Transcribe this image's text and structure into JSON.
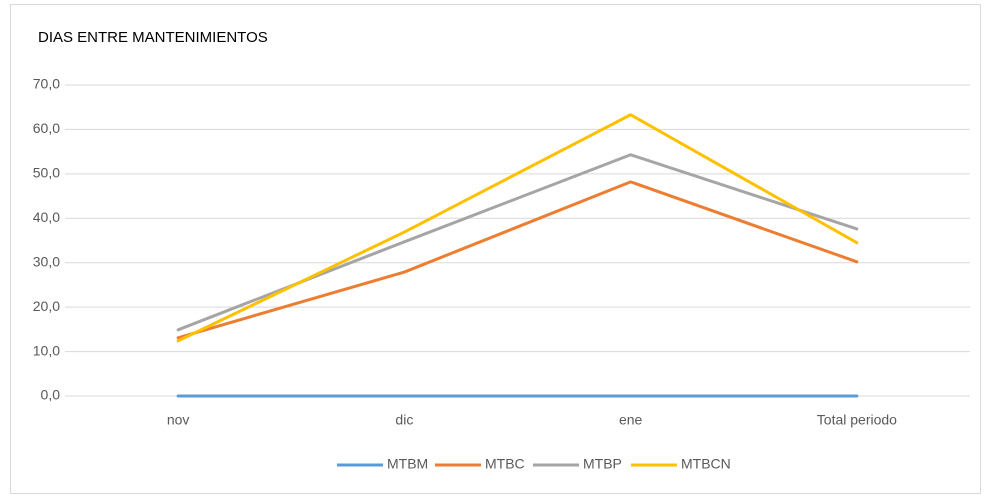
{
  "chart_data": {
    "type": "line",
    "title": "DIAS ENTRE MANTENIMIENTOS",
    "categories": [
      "nov",
      "dic",
      "ene",
      "Total periodo"
    ],
    "series": [
      {
        "name": "MTBM",
        "color": "#5b9bd5",
        "values": [
          0,
          0,
          0,
          0
        ]
      },
      {
        "name": "MTBC",
        "color": "#ed7d31",
        "values": [
          13.1,
          27.9,
          48.2,
          30.2
        ]
      },
      {
        "name": "MTBP",
        "color": "#a5a5a5",
        "values": [
          14.9,
          34.7,
          54.3,
          37.6
        ]
      },
      {
        "name": "MTBCN",
        "color": "#ffc000",
        "values": [
          12.4,
          36.9,
          63.3,
          34.5
        ]
      }
    ],
    "ylim": [
      0,
      70
    ],
    "yticks": [
      {
        "value": 0,
        "label": "0,0"
      },
      {
        "value": 10,
        "label": "10,0"
      },
      {
        "value": 20,
        "label": "20,0"
      },
      {
        "value": 30,
        "label": "30,0"
      },
      {
        "value": 40,
        "label": "40,0"
      },
      {
        "value": 50,
        "label": "50,0"
      },
      {
        "value": 60,
        "label": "60,0"
      },
      {
        "value": 70,
        "label": "70,0"
      }
    ],
    "grid": true,
    "legend": "bottom"
  }
}
